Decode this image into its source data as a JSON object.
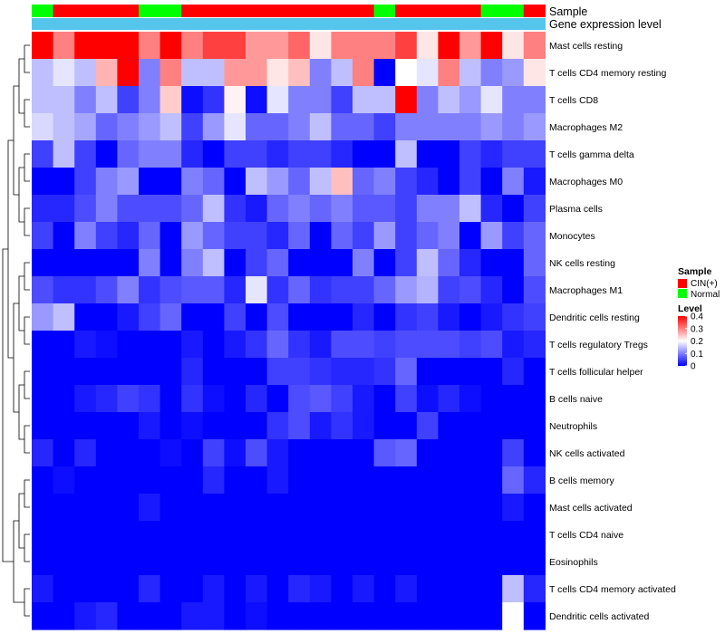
{
  "chart_data": {
    "type": "heatmap",
    "title": "",
    "n_samples": 24,
    "annotation_tracks": [
      {
        "name": "Sample",
        "label": "Sample"
      },
      {
        "name": "Gene expression level",
        "label": "Gene expression level"
      }
    ],
    "sample_groups": [
      "Normal",
      "CIN(+)",
      "CIN(+)",
      "CIN(+)",
      "CIN(+)",
      "Normal",
      "Normal",
      "CIN(+)",
      "CIN(+)",
      "CIN(+)",
      "CIN(+)",
      "CIN(+)",
      "CIN(+)",
      "CIN(+)",
      "CIN(+)",
      "CIN(+)",
      "Normal",
      "CIN(+)",
      "CIN(+)",
      "CIN(+)",
      "CIN(+)",
      "Normal",
      "Normal",
      "CIN(+)"
    ],
    "gene_expression_level": [
      0.0,
      0.0,
      0.0,
      0.0,
      0.0,
      0.0,
      0.0,
      0.0,
      0.0,
      0.0,
      0.0,
      0.0,
      0.0,
      0.0,
      0.0,
      0.0,
      0.0,
      0.0,
      0.0,
      0.0,
      0.0,
      0.0,
      0.0,
      0.0
    ],
    "rows": [
      "Mast cells resting",
      "T cells CD4 memory resting",
      "T cells CD8",
      "Macrophages M2",
      "T cells gamma delta",
      "Macrophages M0",
      "Plasma cells",
      "Monocytes",
      "NK cells resting",
      "Macrophages M1",
      "Dendritic cells resting",
      "T cells regulatory  Tregs",
      "T cells follicular helper",
      "B cells naive",
      "Neutrophils",
      "NK cells activated",
      "B cells memory",
      "Mast cells activated",
      "T cells CD4 naive",
      "Eosinophils",
      "T cells CD4 memory activated",
      "Dendritic cells activated"
    ],
    "values": [
      [
        0.4,
        0.3,
        0.4,
        0.4,
        0.4,
        0.3,
        0.4,
        0.3,
        0.35,
        0.35,
        0.28,
        0.28,
        0.32,
        0.22,
        0.3,
        0.3,
        0.3,
        0.35,
        0.22,
        0.4,
        0.28,
        0.4,
        0.22,
        0.3
      ],
      [
        0.15,
        0.18,
        0.15,
        0.26,
        0.4,
        0.1,
        0.3,
        0.15,
        0.15,
        0.28,
        0.28,
        0.22,
        0.25,
        0.1,
        0.15,
        0.3,
        0.0,
        0.2,
        0.18,
        0.3,
        0.15,
        0.1,
        0.12,
        0.22
      ],
      [
        0.15,
        0.15,
        0.1,
        0.15,
        0.05,
        0.1,
        0.24,
        0.01,
        0.04,
        0.21,
        0.01,
        0.18,
        0.1,
        0.1,
        0.05,
        0.15,
        0.15,
        0.4,
        0.1,
        0.15,
        0.12,
        0.18,
        0.1,
        0.1
      ],
      [
        0.17,
        0.15,
        0.13,
        0.08,
        0.1,
        0.12,
        0.15,
        0.05,
        0.12,
        0.18,
        0.08,
        0.08,
        0.1,
        0.15,
        0.08,
        0.08,
        0.05,
        0.1,
        0.1,
        0.1,
        0.1,
        0.12,
        0.1,
        0.12
      ],
      [
        0.05,
        0.15,
        0.05,
        0.0,
        0.08,
        0.1,
        0.1,
        0.03,
        0.0,
        0.05,
        0.05,
        0.03,
        0.05,
        0.05,
        0.03,
        0.0,
        0.0,
        0.15,
        0.0,
        0.0,
        0.05,
        0.03,
        0.05,
        0.05
      ],
      [
        0.0,
        0.0,
        0.05,
        0.1,
        0.12,
        0.0,
        0.0,
        0.1,
        0.08,
        0.0,
        0.15,
        0.12,
        0.08,
        0.15,
        0.25,
        0.08,
        0.1,
        0.05,
        0.03,
        0.0,
        0.05,
        0.0,
        0.1,
        0.02
      ],
      [
        0.03,
        0.03,
        0.06,
        0.1,
        0.06,
        0.06,
        0.06,
        0.08,
        0.15,
        0.04,
        0.02,
        0.08,
        0.1,
        0.08,
        0.1,
        0.07,
        0.07,
        0.05,
        0.1,
        0.1,
        0.15,
        0.03,
        0.0,
        0.05
      ],
      [
        0.05,
        0.0,
        0.1,
        0.05,
        0.03,
        0.08,
        0.0,
        0.12,
        0.08,
        0.05,
        0.05,
        0.03,
        0.08,
        0.0,
        0.08,
        0.05,
        0.12,
        0.05,
        0.08,
        0.1,
        0.0,
        0.12,
        0.05,
        0.08
      ],
      [
        0.0,
        0.0,
        0.0,
        0.0,
        0.0,
        0.1,
        0.0,
        0.1,
        0.15,
        0.0,
        0.05,
        0.08,
        0.0,
        0.0,
        0.0,
        0.1,
        0.0,
        0.05,
        0.15,
        0.08,
        0.03,
        0.0,
        0.0,
        0.08
      ],
      [
        0.06,
        0.04,
        0.04,
        0.06,
        0.1,
        0.04,
        0.06,
        0.07,
        0.07,
        0.03,
        0.18,
        0.04,
        0.08,
        0.04,
        0.05,
        0.05,
        0.08,
        0.12,
        0.14,
        0.05,
        0.06,
        0.03,
        0.0,
        0.06
      ],
      [
        0.12,
        0.15,
        0.0,
        0.0,
        0.02,
        0.05,
        0.08,
        0.0,
        0.0,
        0.05,
        0.0,
        0.06,
        0.0,
        0.0,
        0.0,
        0.03,
        0.0,
        0.04,
        0.05,
        0.02,
        0.0,
        0.02,
        0.04,
        0.05
      ],
      [
        0.0,
        0.0,
        0.02,
        0.01,
        0.0,
        0.0,
        0.0,
        0.02,
        0.0,
        0.02,
        0.04,
        0.08,
        0.04,
        0.02,
        0.06,
        0.06,
        0.05,
        0.06,
        0.06,
        0.06,
        0.05,
        0.06,
        0.02,
        0.03
      ],
      [
        0.0,
        0.0,
        0.0,
        0.0,
        0.0,
        0.0,
        0.0,
        0.03,
        0.0,
        0.0,
        0.0,
        0.05,
        0.05,
        0.04,
        0.03,
        0.03,
        0.04,
        0.08,
        0.0,
        0.0,
        0.0,
        0.0,
        0.03,
        0.0
      ],
      [
        0.0,
        0.0,
        0.02,
        0.03,
        0.05,
        0.04,
        0.0,
        0.04,
        0.01,
        0.0,
        0.03,
        0.0,
        0.06,
        0.07,
        0.05,
        0.02,
        0.0,
        0.05,
        0.01,
        0.03,
        0.01,
        0.0,
        0.0,
        0.0
      ],
      [
        0.0,
        0.0,
        0.0,
        0.0,
        0.0,
        0.02,
        0.0,
        0.01,
        0.0,
        0.0,
        0.0,
        0.04,
        0.06,
        0.02,
        0.04,
        0.02,
        0.0,
        0.0,
        0.05,
        0.0,
        0.0,
        0.0,
        0.0,
        0.0
      ],
      [
        0.03,
        0.0,
        0.03,
        0.0,
        0.0,
        0.0,
        0.01,
        0.0,
        0.05,
        0.01,
        0.06,
        0.02,
        0.0,
        0.0,
        0.0,
        0.0,
        0.07,
        0.08,
        0.0,
        0.0,
        0.0,
        0.0,
        0.05,
        0.0
      ],
      [
        0.0,
        0.01,
        0.0,
        0.0,
        0.0,
        0.0,
        0.0,
        0.0,
        0.03,
        0.0,
        0.0,
        0.02,
        0.0,
        0.0,
        0.0,
        0.0,
        0.0,
        0.0,
        0.0,
        0.0,
        0.0,
        0.0,
        0.08,
        0.03
      ],
      [
        0.0,
        0.0,
        0.0,
        0.0,
        0.0,
        0.02,
        0.0,
        0.0,
        0.0,
        0.0,
        0.0,
        0.0,
        0.0,
        0.0,
        0.0,
        0.0,
        0.0,
        0.0,
        0.0,
        0.0,
        0.0,
        0.0,
        0.02,
        0.0
      ],
      [
        0.0,
        0.0,
        0.0,
        0.0,
        0.0,
        0.0,
        0.0,
        0.0,
        0.0,
        0.0,
        0.0,
        0.0,
        0.0,
        0.0,
        0.0,
        0.0,
        0.0,
        0.0,
        0.0,
        0.0,
        0.0,
        0.0,
        0.0,
        0.0
      ],
      [
        0.0,
        0.0,
        0.0,
        0.0,
        0.0,
        0.0,
        0.0,
        0.0,
        0.0,
        0.0,
        0.0,
        0.0,
        0.0,
        0.0,
        0.0,
        0.0,
        0.0,
        0.0,
        0.0,
        0.0,
        0.0,
        0.0,
        0.0,
        0.0
      ],
      [
        0.02,
        0.0,
        0.0,
        0.0,
        0.0,
        0.03,
        0.0,
        0.0,
        0.02,
        0.0,
        0.02,
        0.0,
        0.03,
        0.02,
        0.0,
        0.02,
        0.0,
        0.02,
        0.0,
        0.0,
        0.0,
        0.0,
        0.15,
        0.03
      ],
      [
        0.0,
        0.0,
        0.02,
        0.03,
        0.0,
        0.0,
        0.0,
        0.02,
        0.02,
        0.0,
        0.01,
        0.0,
        0.0,
        0.0,
        0.0,
        0.0,
        0.0,
        0.0,
        0.0,
        0.0,
        0.0,
        0.0,
        0.2,
        0.0
      ]
    ],
    "legend": {
      "sample": {
        "title": "Sample",
        "entries": [
          {
            "label": "CIN(+)",
            "color": "#ff0000"
          },
          {
            "label": "Normal",
            "color": "#00ff00"
          }
        ]
      },
      "level": {
        "title": "Level",
        "ticks": [
          "0.4",
          "0.3",
          "0.2",
          "0.1",
          "0"
        ],
        "tick_values": [
          0.4,
          0.3,
          0.2,
          0.1,
          0.0
        ],
        "range": [
          0,
          0.4
        ]
      }
    },
    "colors": {
      "low": "#0000ff",
      "mid": "#ffffff",
      "high": "#ff0000",
      "cin": "#ff0000",
      "normal": "#00ff00",
      "gene_level": "#56c5ec"
    },
    "dendrogram": {
      "side": "left",
      "leaf_order": "rows"
    }
  }
}
